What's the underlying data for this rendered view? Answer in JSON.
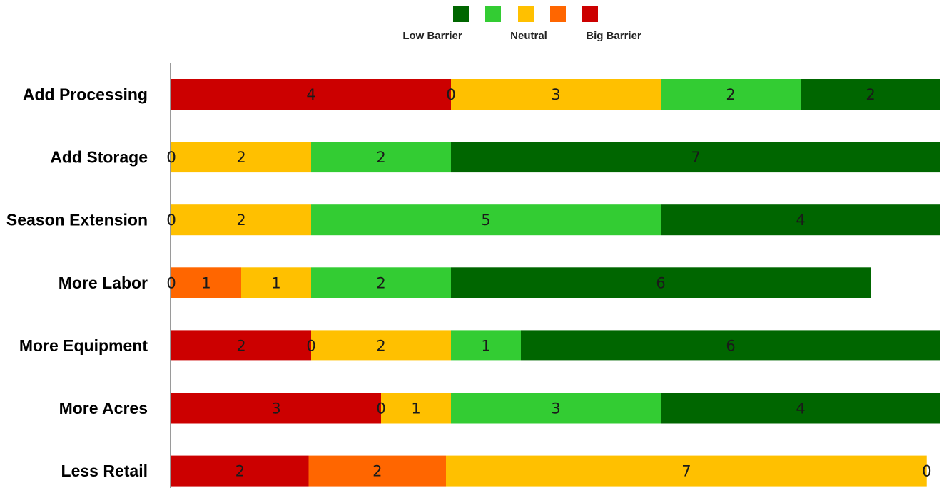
{
  "chart_data": {
    "type": "bar",
    "orientation": "horizontal",
    "stacked": true,
    "categories": [
      "Add Processing",
      "Add Storage",
      "Season Extension",
      "More Labor",
      "More Equipment",
      "More Acres",
      "Less Retail"
    ],
    "series": [
      {
        "key": "s5",
        "color": "#cc0000",
        "values": [
          4,
          0,
          0,
          0,
          2,
          3,
          2
        ]
      },
      {
        "key": "s4",
        "color": "#ff6600",
        "values": [
          0,
          0,
          0,
          1,
          0,
          0,
          2
        ]
      },
      {
        "key": "s3",
        "color": "#ffc000",
        "values": [
          3,
          2,
          2,
          1,
          2,
          1,
          7
        ]
      },
      {
        "key": "s2",
        "color": "#33cc33",
        "values": [
          2,
          2,
          5,
          2,
          1,
          3,
          0
        ]
      },
      {
        "key": "s1",
        "color": "#006600",
        "values": [
          2,
          7,
          4,
          6,
          6,
          4,
          0
        ]
      }
    ],
    "legend": {
      "position": "top-center",
      "swatch_order": [
        "#006600",
        "#33cc33",
        "#ffc000",
        "#ff6600",
        "#cc0000"
      ],
      "labels": [
        "Low Barrier",
        "Neutral",
        "Big Barrier"
      ]
    },
    "xlim": [
      0,
      11
    ],
    "xlim_last_row": [
      0,
      11.2
    ],
    "grid": false,
    "data_labels": true
  }
}
